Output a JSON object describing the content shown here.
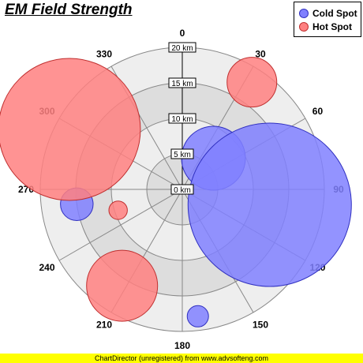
{
  "chart_data": {
    "type": "polar-bubble",
    "title": "EM Field Strength",
    "angle_labels": [
      "0",
      "30",
      "60",
      "90",
      "120",
      "150",
      "180",
      "210",
      "240",
      "270",
      "300",
      "330"
    ],
    "radial_ticks": [
      {
        "value": 0,
        "label": "0 km"
      },
      {
        "value": 5,
        "label": "5 km"
      },
      {
        "value": 10,
        "label": "10 km"
      },
      {
        "value": 15,
        "label": "15 km"
      },
      {
        "value": 20,
        "label": "20 km"
      }
    ],
    "radial_max": 20,
    "series": [
      {
        "name": "Cold Spot",
        "color": "#8080ff",
        "stroke": "#3030c0",
        "points": [
          {
            "angle": 45,
            "r": 6.2,
            "size": 4.5
          },
          {
            "angle": 100,
            "r": 12.5,
            "size": 11.5
          },
          {
            "angle": 262,
            "r": 15,
            "size": 2.3
          },
          {
            "angle": 173,
            "r": 18,
            "size": 1.5
          }
        ]
      },
      {
        "name": "Hot Spot",
        "color": "#ff8080",
        "stroke": "#c03030",
        "points": [
          {
            "angle": 33,
            "r": 18,
            "size": 3.5
          },
          {
            "angle": 298,
            "r": 18,
            "size": 10
          },
          {
            "angle": 252,
            "r": 9.5,
            "size": 1.3
          },
          {
            "angle": 212,
            "r": 16,
            "size": 5
          }
        ]
      }
    ],
    "grid": true,
    "legend_position": "top-right"
  },
  "footer": "ChartDirector (unregistered) from www.advsofteng.com"
}
